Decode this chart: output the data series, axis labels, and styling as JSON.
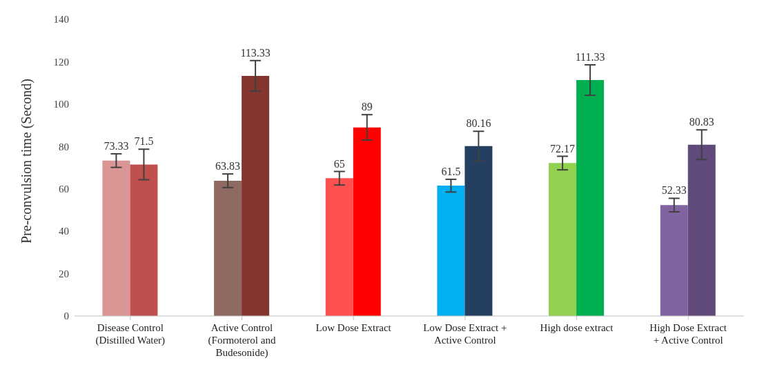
{
  "chart_data": {
    "type": "bar",
    "ylabel": "Pre-convulsion time (Second)",
    "categories": [
      "Disease Control (Distilled Water)",
      "Active Control (Formoterol and Budesonide)",
      "Low Dose Extract",
      "Low Dose Extract + Active Control",
      "High dose extract",
      "High Dose Extract + Active Control"
    ],
    "series": [
      {
        "colors": [
          "#d99694",
          "#8e6a62",
          "#ff5050",
          "#00b0f0",
          "#92d050",
          "#8064a2"
        ],
        "values": [
          73.33,
          63.83,
          65,
          61.5,
          72.17,
          52.33
        ],
        "errors": [
          3.2,
          3.2,
          3.2,
          3,
          3.2,
          3.2
        ]
      },
      {
        "colors": [
          "#c0504d",
          "#843530",
          "#ff0000",
          "#243f60",
          "#00b050",
          "#604a7b"
        ],
        "values": [
          71.5,
          113.33,
          89,
          80.16,
          111.33,
          80.83
        ],
        "errors": [
          7.2,
          7.2,
          6,
          7,
          7.2,
          7
        ]
      }
    ],
    "ylim": [
      0,
      140
    ],
    "yticks": [
      0,
      20,
      40,
      60,
      80,
      100,
      120,
      140
    ],
    "grid": false,
    "legend": false,
    "data_labels": true
  }
}
